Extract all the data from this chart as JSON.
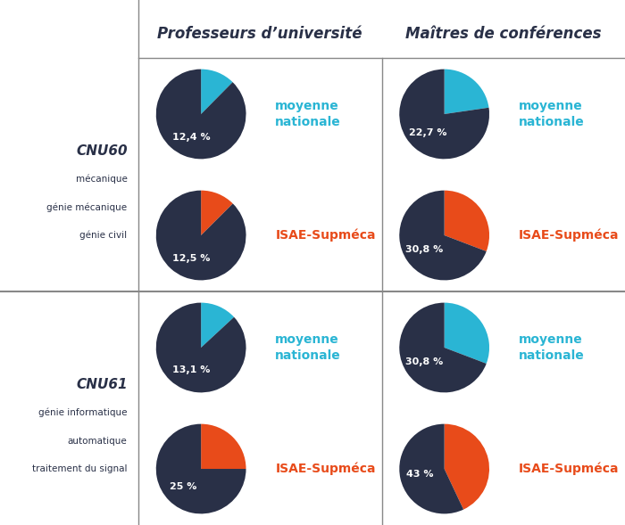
{
  "title_col1": "Professeurs d’université",
  "title_col2": "Maîtres de conférences",
  "row_labels": [
    [
      "CNU60",
      "mécanique",
      "génie mécanique",
      "génie civil"
    ],
    [
      "CNU61",
      "génie informatique",
      "automatique",
      "traitement du signal"
    ]
  ],
  "pies": [
    {
      "row": 0,
      "col": 0,
      "type": "nationale",
      "value": 12.4,
      "label": "12,4 %",
      "color_highlight": "#2ab5d4",
      "color_dark": "#293047"
    },
    {
      "row": 0,
      "col": 0,
      "type": "isae",
      "value": 12.5,
      "label": "12,5 %",
      "color_highlight": "#e84b1a",
      "color_dark": "#293047"
    },
    {
      "row": 0,
      "col": 1,
      "type": "nationale",
      "value": 22.7,
      "label": "22,7 %",
      "color_highlight": "#2ab5d4",
      "color_dark": "#293047"
    },
    {
      "row": 0,
      "col": 1,
      "type": "isae",
      "value": 30.8,
      "label": "30,8 %",
      "color_highlight": "#e84b1a",
      "color_dark": "#293047"
    },
    {
      "row": 1,
      "col": 0,
      "type": "nationale",
      "value": 13.1,
      "label": "13,1 %",
      "color_highlight": "#2ab5d4",
      "color_dark": "#293047"
    },
    {
      "row": 1,
      "col": 0,
      "type": "isae",
      "value": 25.0,
      "label": "25 %",
      "color_highlight": "#e84b1a",
      "color_dark": "#293047"
    },
    {
      "row": 1,
      "col": 1,
      "type": "nationale",
      "value": 30.8,
      "label": "30,8 %",
      "color_highlight": "#2ab5d4",
      "color_dark": "#293047"
    },
    {
      "row": 1,
      "col": 1,
      "type": "isae",
      "value": 43.0,
      "label": "43 %",
      "color_highlight": "#e84b1a",
      "color_dark": "#293047"
    }
  ],
  "legend_nationale": "moyenne\nnationale",
  "legend_isae": "ISAE-Supméca",
  "color_nationale_text": "#2ab5d4",
  "color_isae_text": "#e84b1a",
  "color_header_text": "#293047",
  "color_row_label_bold": "#293047",
  "color_row_label_normal": "#293047",
  "bg_color": "#ffffff",
  "line_color": "#888888"
}
